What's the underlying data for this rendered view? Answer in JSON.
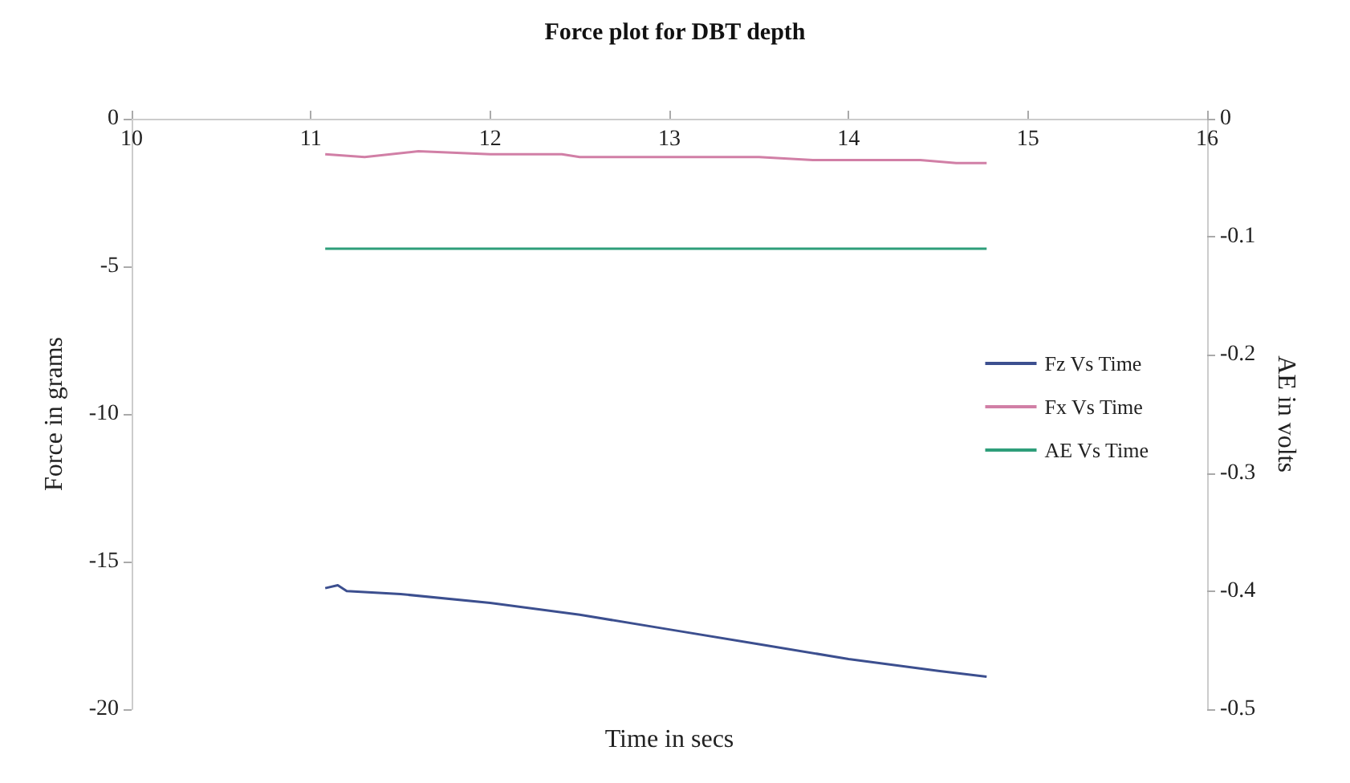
{
  "chart_data": {
    "type": "line",
    "title": "Force plot for DBT depth",
    "xlabel": "Time in secs",
    "ylabel": "Force in grams",
    "y2label": "AE in volts",
    "xlim": [
      10,
      16
    ],
    "xticks": [
      10,
      11,
      12,
      13,
      14,
      15,
      16
    ],
    "ylim": [
      -20,
      0
    ],
    "yticks": [
      -20,
      -15,
      -10,
      -5,
      0
    ],
    "y2lim": [
      -0.5,
      0
    ],
    "y2ticks": [
      -0.5,
      -0.4,
      -0.3,
      -0.2,
      -0.1,
      0
    ],
    "grid": false,
    "legend": "right",
    "marker": "none",
    "line_style": "solid",
    "series": [
      {
        "name": "Fz Vs Time",
        "color": "#3c4f8f",
        "x": [
          11.08,
          11.15,
          11.2,
          11.5,
          12.0,
          12.5,
          13.0,
          13.5,
          14.0,
          14.5,
          14.77
        ],
        "values": [
          -15.9,
          -15.8,
          -16.0,
          -16.1,
          -16.4,
          -16.8,
          -17.3,
          -17.8,
          -18.3,
          -18.7,
          -18.9
        ]
      },
      {
        "name": "Fx Vs Time",
        "color": "#d17fa6",
        "x": [
          11.08,
          11.3,
          11.6,
          12.0,
          12.4,
          12.5,
          13.0,
          13.5,
          13.8,
          14.0,
          14.4,
          14.6,
          14.77
        ],
        "values": [
          -1.2,
          -1.3,
          -1.1,
          -1.2,
          -1.2,
          -1.3,
          -1.3,
          -1.3,
          -1.4,
          -1.4,
          -1.4,
          -1.5,
          -1.5
        ]
      },
      {
        "name": "AE Vs Time",
        "color": "#2e9e7a",
        "axis": "y2",
        "x": [
          11.08,
          14.77
        ],
        "values": [
          -0.11,
          -0.11
        ]
      }
    ]
  }
}
